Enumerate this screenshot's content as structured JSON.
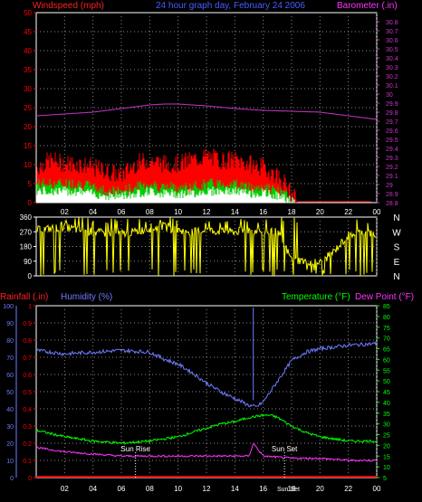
{
  "header": {
    "windspeed_label": "Windspeed (mph)",
    "title": "24 hour graph day, February 24 2006",
    "barometer_label": "Barometer (.in)"
  },
  "hour_ticks": [
    "02",
    "04",
    "06",
    "08",
    "10",
    "12",
    "14",
    "16",
    "18",
    "20",
    "22",
    "00"
  ],
  "colors": {
    "wind_gust": "#ff0000",
    "wind_avg": "#00cc00",
    "wind_base": "#ffffff",
    "barometer": "#cc33cc",
    "direction": "#ffff00",
    "rain": "#ff0000",
    "humidity": "#6f7cff",
    "temperature": "#00ff00",
    "dewpoint": "#ff33ff",
    "grid": "#888888",
    "axis": "#ffffff"
  },
  "chart_data": [
    {
      "type": "area",
      "name": "wind-barometer",
      "left_axis": {
        "label": "Windspeed (mph)",
        "ylim": [
          0,
          50
        ],
        "ticks": [
          "0",
          "5",
          "10",
          "15",
          "20",
          "25",
          "30",
          "35",
          "40",
          "45",
          "50"
        ]
      },
      "right_axis": {
        "label": "Barometer (.in)",
        "ylim": [
          28.8,
          30.9
        ],
        "ticks": [
          "28.8",
          "28.9",
          "29",
          "29.1",
          "29.2",
          "29.3",
          "29.4",
          "29.5",
          "29.6",
          "29.7",
          "29.8",
          "29.9",
          "30",
          "30.1",
          "30.2",
          "30.3",
          "30.4",
          "30.5",
          "30.6",
          "30.7",
          "30.8"
        ]
      },
      "x_hours": [
        0,
        24
      ],
      "series": [
        {
          "name": "Barometer (.in)",
          "axis": "right",
          "x": [
            0,
            2,
            4,
            6,
            8,
            9,
            10,
            12,
            14,
            16,
            18,
            20,
            22,
            24
          ],
          "values": [
            29.76,
            29.78,
            29.8,
            29.84,
            29.88,
            29.89,
            29.89,
            29.87,
            29.84,
            29.82,
            29.81,
            29.8,
            29.76,
            29.72
          ]
        },
        {
          "name": "Wind gust",
          "axis": "left",
          "x": [
            0,
            1,
            2,
            3,
            4,
            5,
            6,
            7,
            8,
            9,
            10,
            11,
            12,
            13,
            14,
            15,
            16,
            16.5,
            17,
            17.5,
            18,
            18.4,
            24
          ],
          "values": [
            9,
            11,
            10,
            10,
            9,
            8,
            7,
            10,
            11,
            10,
            10,
            11,
            12,
            11,
            11,
            10,
            9,
            8,
            7,
            5,
            2,
            0,
            0
          ]
        },
        {
          "name": "Wind average",
          "axis": "left",
          "x": [
            0,
            1,
            2,
            3,
            4,
            5,
            6,
            7,
            8,
            9,
            10,
            11,
            12,
            13,
            14,
            15,
            16,
            17,
            18,
            18.3,
            24
          ],
          "values": [
            5,
            5,
            5,
            5,
            4,
            3,
            3,
            4,
            5,
            4,
            4,
            4,
            5,
            5,
            5,
            4,
            4,
            3,
            1,
            0,
            0
          ]
        }
      ]
    },
    {
      "type": "scatter",
      "name": "wind-direction",
      "left_axis": {
        "ylim": [
          0,
          360
        ],
        "ticks": [
          "0",
          "90",
          "180",
          "270",
          "360"
        ]
      },
      "right_labels": [
        "N",
        "W",
        "S",
        "E",
        "N"
      ],
      "x_hours": [
        0,
        24
      ],
      "series": [
        {
          "name": "Wind direction",
          "x": [
            0,
            1,
            2,
            3,
            4,
            5,
            6,
            7,
            8,
            9,
            10,
            11,
            12,
            13,
            14,
            15,
            16,
            17,
            18,
            19,
            20,
            21,
            22,
            23,
            24
          ],
          "values": [
            280,
            290,
            300,
            280,
            270,
            260,
            260,
            270,
            290,
            300,
            280,
            270,
            280,
            270,
            270,
            280,
            270,
            270,
            100,
            90,
            80,
            150,
            250,
            270,
            250
          ]
        }
      ]
    },
    {
      "type": "line",
      "name": "humidity-temperature",
      "labels": {
        "rainfall": "Rainfall (.in)",
        "humidity": "Humidity (%)",
        "temperature": "Temperature (°F)",
        "dewpoint": "Dew Point (°F)"
      },
      "humidity_axis": {
        "ylim": [
          0,
          100
        ],
        "ticks": [
          "0",
          "10",
          "20",
          "30",
          "40",
          "50",
          "60",
          "70",
          "80",
          "90",
          "100"
        ]
      },
      "rain_axis": {
        "ylim": [
          0,
          1
        ],
        "ticks": [
          "0",
          "0.1",
          "0.2",
          "0.3",
          "0.4",
          "0.5",
          "0.6",
          "0.7",
          "0.8",
          "0.9",
          "1"
        ]
      },
      "temp_axis": {
        "ylim": [
          5,
          85
        ],
        "ticks": [
          "5",
          "10",
          "15",
          "20",
          "25",
          "30",
          "35",
          "40",
          "45",
          "50",
          "55",
          "60",
          "65",
          "70",
          "75",
          "80",
          "85"
        ]
      },
      "x_hours": [
        0,
        24
      ],
      "series": [
        {
          "name": "Humidity (%)",
          "axis": "humidity",
          "x": [
            0,
            2,
            4,
            6,
            8,
            9,
            10,
            11,
            12,
            13,
            14,
            15,
            15.5,
            16,
            17,
            18,
            19,
            20,
            22,
            24
          ],
          "values": [
            74,
            72,
            73,
            74,
            73,
            69,
            66,
            61,
            55,
            50,
            46,
            42,
            41,
            44,
            56,
            68,
            73,
            75,
            77,
            78
          ]
        },
        {
          "name": "Temperature (°F)",
          "axis": "temp",
          "x": [
            0,
            2,
            4,
            6,
            8,
            10,
            11,
            12,
            13,
            14,
            15,
            16,
            16.5,
            17,
            18,
            19,
            20,
            22,
            24
          ],
          "values": [
            27,
            24,
            22,
            21,
            22,
            24,
            26,
            28,
            30,
            31,
            33,
            34,
            34,
            33,
            29,
            26,
            24,
            22,
            22
          ]
        },
        {
          "name": "Dew Point (°F)",
          "axis": "temp",
          "x": [
            0,
            2,
            4,
            6,
            8,
            10,
            12,
            14,
            15,
            15.3,
            16,
            18,
            20,
            22,
            24
          ],
          "values": [
            19,
            17,
            16,
            15,
            15,
            15,
            15,
            15,
            15,
            21,
            15,
            14,
            14,
            13,
            13
          ]
        },
        {
          "name": "Rainfall (.in)",
          "axis": "rain",
          "x": [
            0,
            24
          ],
          "values": [
            0,
            0
          ]
        }
      ],
      "annotations": [
        {
          "text": "Sun Rise",
          "hour": 7.0
        },
        {
          "text": "Sun Set",
          "hour": 17.5
        }
      ],
      "bottom_annotation": "Sun Set"
    }
  ]
}
